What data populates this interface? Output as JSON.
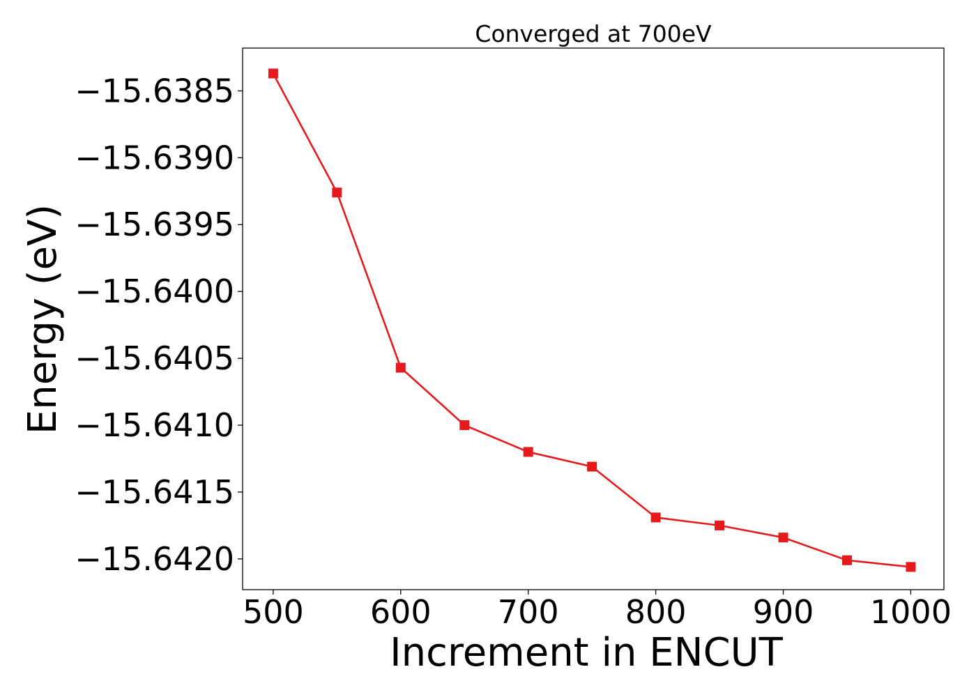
{
  "chart_data": {
    "type": "line",
    "title": "Converged at 700eV",
    "xlabel": "Increment in ENCUT",
    "ylabel": "Energy (eV)",
    "x": [
      500,
      550,
      600,
      650,
      700,
      750,
      800,
      850,
      900,
      950,
      1000
    ],
    "series": [
      {
        "values": [
          -15.63837,
          -15.63926,
          -15.64057,
          -15.641,
          -15.6412,
          -15.64131,
          -15.64169,
          -15.64175,
          -15.64184,
          -15.64201,
          -15.64206
        ],
        "color": "#e41a1c",
        "marker": "square"
      }
    ],
    "xlim": [
      476,
      1026
    ],
    "ylim": [
      -15.64223,
      -15.63818
    ],
    "xticks": [
      500,
      600,
      700,
      800,
      900,
      1000
    ],
    "xtick_labels": [
      "500",
      "600",
      "700",
      "800",
      "900",
      "1000"
    ],
    "yticks": [
      -15.6385,
      -15.639,
      -15.6395,
      -15.64,
      -15.6405,
      -15.641,
      -15.6415,
      -15.642
    ],
    "ytick_labels": [
      "−15.6385",
      "−15.6390",
      "−15.6395",
      "−15.6400",
      "−15.6405",
      "−15.6410",
      "−15.6415",
      "−15.6420"
    ],
    "grid": false,
    "legend": false
  }
}
